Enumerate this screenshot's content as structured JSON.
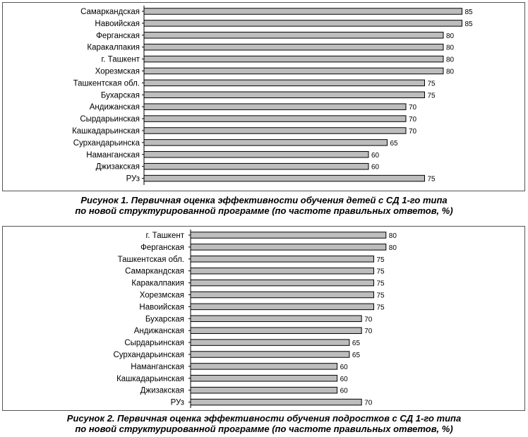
{
  "chart_data": [
    {
      "type": "bar",
      "orientation": "horizontal",
      "categories": [
        "Самаркандская",
        "Навоийская",
        "Ферганская",
        "Каракалпакия",
        "г. Ташкент",
        "Хорезмская",
        "Ташкентская обл.",
        "Бухарская",
        "Андижанская",
        "Сырдарьинская",
        "Кашкадарьинская",
        "Сурхандарьинска",
        "Наманганская",
        "Джизакская",
        "РУз"
      ],
      "values": [
        85,
        85,
        80,
        80,
        80,
        80,
        75,
        75,
        70,
        70,
        70,
        65,
        60,
        60,
        75
      ],
      "bar_color": "#bdbdbd",
      "caption": [
        "Рисунок 1. Первичная оценка эффективности обучения детей с СД 1-го типа",
        "по новой структурированной программе (по частоте правильных ответов, %)"
      ],
      "grid": false,
      "legend": "none"
    },
    {
      "type": "bar",
      "orientation": "horizontal",
      "categories": [
        "г. Ташкент",
        "Ферганская",
        "Ташкентская обл.",
        "Самаркандская",
        "Каракалпакия",
        "Хорезмская",
        "Навоийская",
        "Бухарская",
        "Андижанская",
        "Сырдарьинская",
        "Сурхандарьинская",
        "Наманганская",
        "Кашкадарьинская",
        "Джизакская",
        "РУз"
      ],
      "values": [
        80,
        80,
        75,
        75,
        75,
        75,
        75,
        70,
        70,
        65,
        65,
        60,
        60,
        60,
        70
      ],
      "bar_color": "#bdbdbd",
      "caption": [
        "Рисунок 2. Первичная оценка эффективности обучения подростков с СД 1-го типа",
        "по новой структурированной программе (по частоте правильных ответов, %)"
      ],
      "grid": false,
      "legend": "none"
    }
  ]
}
